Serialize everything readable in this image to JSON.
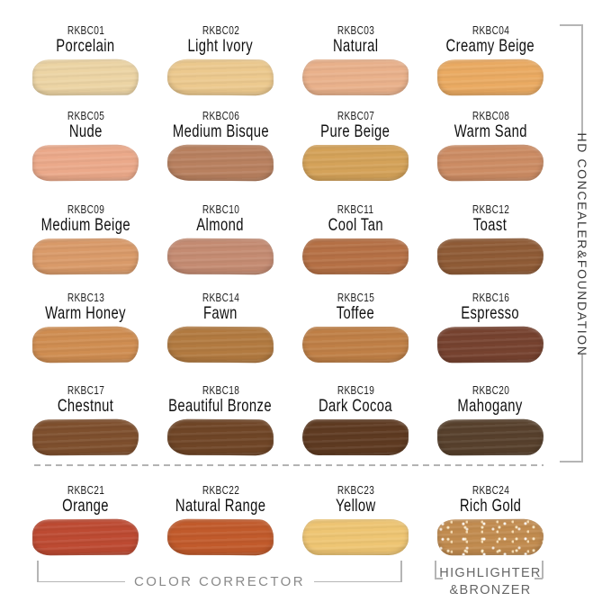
{
  "swatches": [
    {
      "code": "RKBC01",
      "name": "Porcelain",
      "color": "#ecd4a4"
    },
    {
      "code": "RKBC02",
      "name": "Light Ivory",
      "color": "#ecc98e"
    },
    {
      "code": "RKBC03",
      "name": "Natural",
      "color": "#e9b18b"
    },
    {
      "code": "RKBC04",
      "name": "Creamy Beige",
      "color": "#eaaa62"
    },
    {
      "code": "RKBC05",
      "name": "Nude",
      "color": "#eba98a"
    },
    {
      "code": "RKBC06",
      "name": "Medium Bisque",
      "color": "#b8805f"
    },
    {
      "code": "RKBC07",
      "name": "Pure Beige",
      "color": "#d4a259"
    },
    {
      "code": "RKBC08",
      "name": "Warm Sand",
      "color": "#cc8c64"
    },
    {
      "code": "RKBC09",
      "name": "Medium Beige",
      "color": "#d99a69"
    },
    {
      "code": "RKBC10",
      "name": "Almond",
      "color": "#c48b72"
    },
    {
      "code": "RKBC11",
      "name": "Cool Tan",
      "color": "#b57045"
    },
    {
      "code": "RKBC12",
      "name": "Toast",
      "color": "#8f5b36"
    },
    {
      "code": "RKBC13",
      "name": "Warm Honey",
      "color": "#cf8d51"
    },
    {
      "code": "RKBC14",
      "name": "Fawn",
      "color": "#b27a40"
    },
    {
      "code": "RKBC15",
      "name": "Toffee",
      "color": "#bf7f46"
    },
    {
      "code": "RKBC16",
      "name": "Espresso",
      "color": "#76422f"
    },
    {
      "code": "RKBC17",
      "name": "Chestnut",
      "color": "#7e4f2d"
    },
    {
      "code": "RKBC18",
      "name": "Beautiful Bronze",
      "color": "#6f4526"
    },
    {
      "code": "RKBC19",
      "name": "Dark Cocoa",
      "color": "#5e3a21"
    },
    {
      "code": "RKBC20",
      "name": "Mahogany",
      "color": "#57402c"
    },
    {
      "code": "RKBC21",
      "name": "Orange",
      "color": "#bd4a32"
    },
    {
      "code": "RKBC22",
      "name": "Natural Range",
      "color": "#c15a2b"
    },
    {
      "code": "RKBC23",
      "name": "Yellow",
      "color": "#eec573"
    },
    {
      "code": "RKBC24",
      "name": "Rich Gold",
      "color": "#c18b4f"
    }
  ],
  "side_label": {
    "text": "HD CONCEALER&FOUNDATION"
  },
  "groups": {
    "color_corrector": {
      "label": "COLOR CORRECTOR"
    },
    "highlighter_bronzer": {
      "label_line1": "HIGHLIGHTER",
      "label_line2": "&BRONZER"
    }
  },
  "ui_colors": {
    "bracket_line": "#b5b5b5",
    "divider_dash": "#b3b3b3",
    "group_label_text": "#8a8a8a",
    "side_label_text": "#3a3a3a",
    "swatch_label_text": "#1e1e1e"
  }
}
